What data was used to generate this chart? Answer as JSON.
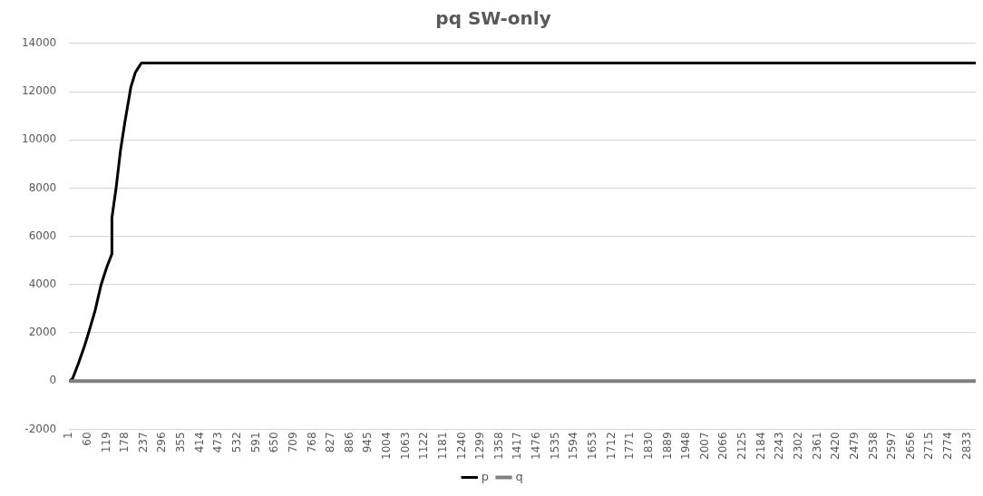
{
  "chart_data": {
    "type": "line",
    "title": "pq SW-only",
    "xlim": [
      1,
      2860
    ],
    "xticks": [
      1,
      60,
      119,
      178,
      237,
      296,
      355,
      414,
      473,
      532,
      591,
      650,
      709,
      768,
      827,
      886,
      945,
      1004,
      1063,
      1122,
      1181,
      1240,
      1299,
      1358,
      1417,
      1476,
      1535,
      1594,
      1653,
      1712,
      1771,
      1830,
      1889,
      1948,
      2007,
      2066,
      2125,
      2184,
      2243,
      2302,
      2361,
      2420,
      2479,
      2538,
      2597,
      2656,
      2715,
      2774,
      2833
    ],
    "ylim": [
      -2000,
      14000
    ],
    "yticks": [
      -2000,
      0,
      2000,
      4000,
      6000,
      8000,
      10000,
      12000,
      14000
    ],
    "grid": "y",
    "legend": "bottom",
    "marker": "none",
    "line_style": "solid",
    "series": [
      {
        "name": "p",
        "color": "#000000",
        "x": [
          1,
          12,
          31,
          50,
          64,
          83,
          102,
          120,
          136,
          136,
          149,
          163,
          177,
          196,
          210,
          229,
          2860
        ],
        "values": [
          0,
          100,
          750,
          1470,
          2070,
          2920,
          4000,
          4730,
          5270,
          6770,
          7980,
          9550,
          10750,
          12200,
          12800,
          13190,
          13190
        ]
      },
      {
        "name": "q",
        "color": "#808080",
        "x": [
          1,
          2860
        ],
        "values": [
          0,
          0
        ]
      }
    ]
  }
}
